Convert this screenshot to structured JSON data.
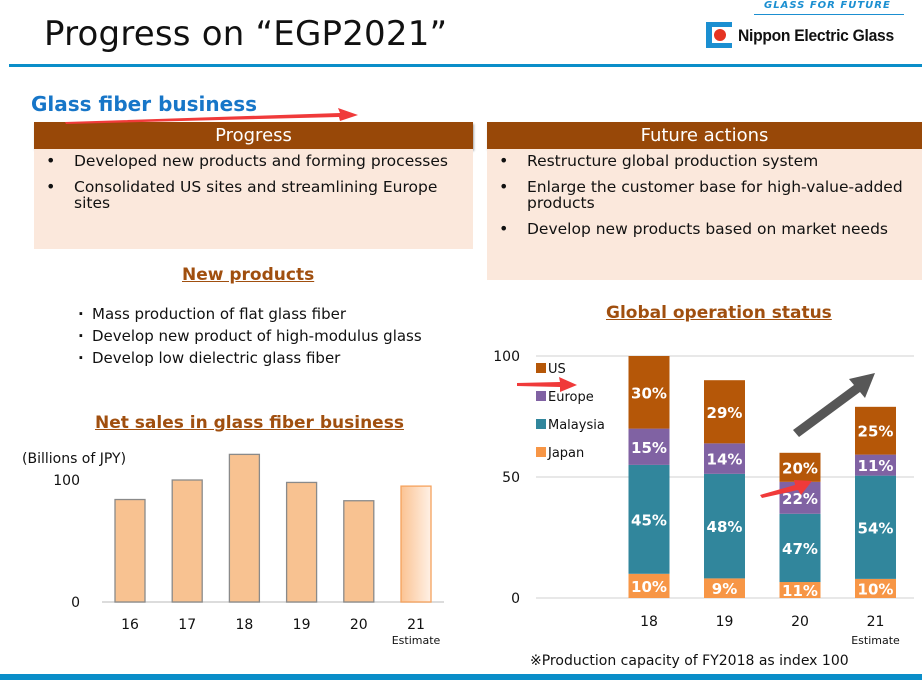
{
  "header": {
    "title": "Progress on “EGP2021”",
    "logo_tagline": "GLASS FOR FUTURE",
    "brand_name": "Nippon Electric Glass"
  },
  "section_title": "Glass fiber business",
  "progress": {
    "heading": "Progress",
    "items": [
      "Developed new products and forming processes",
      "Consolidated US sites and streamlining Europe sites"
    ]
  },
  "future_actions": {
    "heading": "Future actions",
    "items": [
      "Restructure global production system",
      "Enlarge the customer base for high-value-added products",
      "Develop new products based on market needs"
    ]
  },
  "new_products": {
    "heading": "New products",
    "items": [
      "Mass production of flat glass fiber",
      "Develop new product of high-modulus glass",
      "Develop low dielectric glass fiber"
    ]
  },
  "colors": {
    "header_brown": "#984808",
    "box_fill": "#fbe8dc",
    "accent_blue": "#0a8ec9",
    "title_blue": "#1776c8",
    "subtitle_brown": "#a04f0f",
    "us": "#b55708",
    "europe": "#8062a3",
    "malaysia": "#31869c",
    "japan": "#f79646",
    "sales_bar": "#f8c291"
  },
  "chart_data": [
    {
      "type": "bar",
      "title": "Net sales in glass fiber business",
      "ylabel": "(Billions of JPY)",
      "xlabel": "",
      "categories": [
        "16",
        "17",
        "18",
        "19",
        "20",
        "21"
      ],
      "category_sublabels": [
        "",
        "",
        "",
        "",
        "",
        "Estimate"
      ],
      "values": [
        84,
        100,
        121,
        98,
        83,
        95
      ],
      "estimate_flags": [
        false,
        false,
        false,
        false,
        false,
        true
      ],
      "yticks": [
        "0",
        "100"
      ],
      "ylim": [
        0,
        125
      ],
      "grid": false
    },
    {
      "type": "bar",
      "stacked": true,
      "title": "Global operation status",
      "xlabel": "",
      "ylabel": "",
      "categories": [
        "18",
        "19",
        "20",
        "21"
      ],
      "category_sublabels": [
        "",
        "",
        "",
        "Estimate"
      ],
      "totals": [
        100,
        90,
        60,
        79
      ],
      "series": [
        {
          "name": "Japan",
          "color": "#f79646",
          "values": [
            10,
            9,
            11,
            10
          ]
        },
        {
          "name": "Malaysia",
          "color": "#31869c",
          "values": [
            45,
            48,
            47,
            54
          ]
        },
        {
          "name": "Europe",
          "color": "#8062a3",
          "values": [
            15,
            14,
            22,
            11
          ]
        },
        {
          "name": "US",
          "color": "#b55708",
          "values": [
            30,
            29,
            20,
            25
          ]
        }
      ],
      "legend": [
        "US",
        "Europe",
        "Malaysia",
        "Japan"
      ],
      "legend_position": "top-left",
      "yticks": [
        "0",
        "50",
        "100"
      ],
      "ylim": [
        0,
        100
      ],
      "grid": true,
      "value_suffix": "%",
      "note": "※Production capacity of FY2018 as index 100"
    }
  ]
}
